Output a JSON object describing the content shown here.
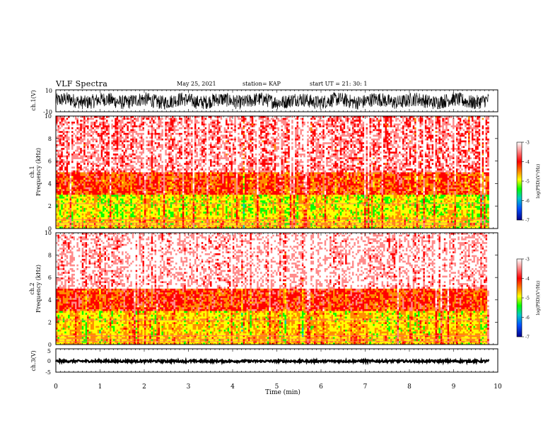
{
  "header": {
    "title": "VLF Spectra",
    "date": "May 25, 2021",
    "station": "station= KAP",
    "start": "start  UT  =   21: 30: 1"
  },
  "colors": {
    "spectrogram_scale": [
      "#ffffff",
      "#ff8a8a",
      "#ff0000",
      "#ff8c00",
      "#ffff00",
      "#00ff00",
      "#00c8c8",
      "#0050ff",
      "#00008c"
    ],
    "waveform": "#000000",
    "axes": "#000000"
  },
  "chart_data": [
    {
      "type": "line",
      "panel": "ch1-waveform",
      "ylabel": "ch.1(V)",
      "ylim": [
        -10,
        10
      ],
      "yticks": [
        "10",
        "-10"
      ],
      "xlim": [
        0,
        10
      ],
      "description": "dense noisy waveform spanning roughly -8 to 8 V over ~9.8 min"
    },
    {
      "type": "heatmap",
      "panel": "ch1-spectrogram",
      "ylabel": "ch.1\nFrequency (kHz)",
      "ylim": [
        0,
        10
      ],
      "yticks": [
        "0",
        "2",
        "4",
        "6",
        "8",
        "10"
      ],
      "xlim": [
        0,
        10
      ],
      "data_end_min": 9.8,
      "colorbar": {
        "label": "log(PSD)(V²/Hz)",
        "range": [
          -7,
          -3
        ],
        "ticks": [
          "-3",
          "-4",
          "-5",
          "-6",
          "-7"
        ]
      },
      "bands": [
        {
          "from_khz": 0,
          "to_khz": 1,
          "level": -4.8
        },
        {
          "from_khz": 1,
          "to_khz": 3,
          "level": -5.0
        },
        {
          "from_khz": 3,
          "to_khz": 5,
          "level": -4.2
        },
        {
          "from_khz": 5,
          "to_khz": 10,
          "level": -3.6
        }
      ]
    },
    {
      "type": "heatmap",
      "panel": "ch2-spectrogram",
      "ylabel": "ch.2\nFrequency (kHz)",
      "ylim": [
        0,
        10
      ],
      "yticks": [
        "0",
        "2",
        "4",
        "6",
        "8",
        "10"
      ],
      "xlim": [
        0,
        10
      ],
      "data_end_min": 9.8,
      "colorbar": {
        "label": "log(PSD)(V²/Hz)",
        "range": [
          -7,
          -3
        ],
        "ticks": [
          "-3",
          "-4",
          "-5",
          "-6",
          "-7"
        ]
      },
      "bands": [
        {
          "from_khz": 0,
          "to_khz": 1,
          "level": -4.7
        },
        {
          "from_khz": 1,
          "to_khz": 3,
          "level": -4.8
        },
        {
          "from_khz": 3,
          "to_khz": 5,
          "level": -4.1
        },
        {
          "from_khz": 5,
          "to_khz": 10,
          "level": -3.5
        }
      ]
    },
    {
      "type": "line",
      "panel": "ch3-waveform",
      "ylabel": "ch.3(V)",
      "ylim": [
        -5,
        5
      ],
      "yticks": [
        "5",
        "0",
        "-5"
      ],
      "xlim": [
        0,
        10
      ],
      "xlabel": "Time  (min)",
      "xticks": [
        "0",
        "1",
        "2",
        "3",
        "4",
        "5",
        "6",
        "7",
        "8",
        "9",
        "10"
      ],
      "description": "thick flat band around -0.3 V from 0 to ~9.8 min"
    }
  ]
}
